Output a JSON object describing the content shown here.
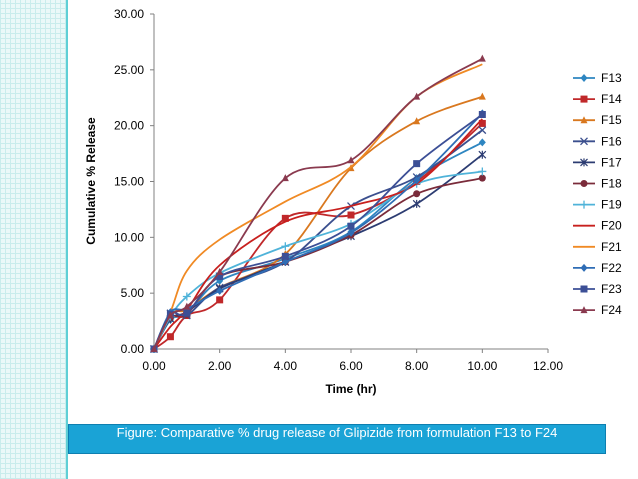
{
  "caption": "Figure: Comparative % drug release of Glipizide from formulation F13 to F24",
  "chart_data": {
    "type": "line",
    "title": "",
    "xlabel": "Time (hr)",
    "ylabel": "Cumulative % Release",
    "xlim": [
      0,
      12
    ],
    "ylim": [
      0,
      30
    ],
    "xticks": [
      "0.00",
      "2.00",
      "4.00",
      "6.00",
      "8.00",
      "10.00",
      "12.00"
    ],
    "yticks": [
      "0.00",
      "5.00",
      "10.00",
      "15.00",
      "20.00",
      "25.00",
      "30.00"
    ],
    "grid": false,
    "legend": "right",
    "series": [
      {
        "name": "F13",
        "color": "#2e86c1",
        "marker": "diamond",
        "x": [
          0,
          0.5,
          1,
          2,
          4,
          6,
          8,
          10
        ],
        "y": [
          0,
          2.6,
          3.2,
          6.1,
          8.1,
          10.5,
          15.3,
          18.5
        ]
      },
      {
        "name": "F14",
        "color": "#c0282a",
        "marker": "square",
        "x": [
          0,
          0.5,
          1,
          2,
          4,
          6,
          8,
          10
        ],
        "y": [
          0,
          1.1,
          3.0,
          4.4,
          11.7,
          12.0,
          15.0,
          20.2
        ]
      },
      {
        "name": "F15",
        "color": "#d9781f",
        "marker": "triangle",
        "x": [
          0,
          0.5,
          1,
          2,
          4,
          6,
          8,
          10
        ],
        "y": [
          0,
          3.2,
          3.5,
          5.5,
          8.5,
          16.2,
          20.4,
          22.6
        ]
      },
      {
        "name": "F16",
        "color": "#3b4f8e",
        "marker": "x",
        "x": [
          0,
          0.5,
          1,
          2,
          4,
          6,
          8,
          10
        ],
        "y": [
          0,
          3.2,
          3.0,
          5.5,
          7.8,
          12.8,
          15.4,
          19.6
        ]
      },
      {
        "name": "F17",
        "color": "#2c3c72",
        "marker": "star",
        "x": [
          0,
          0.5,
          1,
          2,
          4,
          6,
          8,
          10
        ],
        "y": [
          0,
          2.7,
          3.3,
          5.4,
          7.8,
          10.1,
          13.0,
          17.4
        ]
      },
      {
        "name": "F18",
        "color": "#7a2b3a",
        "marker": "circle",
        "x": [
          0,
          0.5,
          1,
          2,
          4,
          6,
          8,
          10
        ],
        "y": [
          0,
          2.8,
          3.1,
          6.5,
          7.8,
          10.2,
          13.9,
          15.3
        ]
      },
      {
        "name": "F19",
        "color": "#4fb3d9",
        "marker": "plus",
        "x": [
          0,
          0.5,
          1,
          2,
          4,
          6,
          8,
          10
        ],
        "y": [
          0,
          2.9,
          4.7,
          6.8,
          9.2,
          11.2,
          14.8,
          15.9
        ]
      },
      {
        "name": "F20",
        "color": "#c8201e",
        "marker": "none",
        "x": [
          0,
          0.5,
          1,
          2,
          4,
          6,
          8,
          10
        ],
        "y": [
          0,
          2.0,
          3.5,
          7.5,
          11.4,
          12.8,
          14.8,
          20.6
        ]
      },
      {
        "name": "F21",
        "color": "#f08a24",
        "marker": "none",
        "x": [
          0,
          0.5,
          1,
          2,
          4,
          6,
          8,
          10
        ],
        "y": [
          0,
          3.3,
          7.0,
          9.8,
          13.2,
          16.3,
          22.6,
          25.5
        ]
      },
      {
        "name": "F22",
        "color": "#2f6db5",
        "marker": "diamond",
        "x": [
          0,
          0.5,
          1,
          2,
          4,
          6,
          8,
          10
        ],
        "y": [
          0,
          3.3,
          3.6,
          5.2,
          7.8,
          10.4,
          15.1,
          21.1
        ]
      },
      {
        "name": "F23",
        "color": "#3c4f96",
        "marker": "square",
        "x": [
          0,
          0.5,
          1,
          2,
          4,
          6,
          8,
          10
        ],
        "y": [
          0,
          3.1,
          3.2,
          6.5,
          8.3,
          11.0,
          16.6,
          21.0
        ]
      },
      {
        "name": "F24",
        "color": "#8a3a4f",
        "marker": "triangle",
        "x": [
          0,
          0.5,
          1,
          2,
          4,
          6,
          8,
          10
        ],
        "y": [
          0,
          3.0,
          3.8,
          6.9,
          15.3,
          16.9,
          22.6,
          26.0
        ]
      }
    ]
  }
}
